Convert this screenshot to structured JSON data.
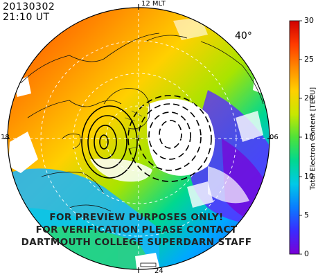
{
  "header": {
    "date": "20130302",
    "time": "21:10 UT"
  },
  "mlt_labels": {
    "top": "12 MLT",
    "bottom": "24",
    "left": "18",
    "right": "06"
  },
  "lat_label": "40°",
  "watermark": {
    "line1": "FOR PREVIEW PURPOSES ONLY!",
    "line2": "FOR VERIFICATION PLEASE CONTACT",
    "line3": "DARTMOUTH COLLEGE SUPERDARN STAFF"
  },
  "colorbar": {
    "label": "Total Electron Content [TECU]",
    "min": 0,
    "max": 30,
    "ticks": [
      "0",
      "5",
      "10",
      "15",
      "20",
      "25",
      "30"
    ],
    "colors": [
      "#7a00d6",
      "#3a2bff",
      "#0a7cff",
      "#00c9e8",
      "#00d890",
      "#4ee23a",
      "#c8e800",
      "#ffd000",
      "#ff8a00",
      "#ff3a00",
      "#d00000"
    ]
  }
}
